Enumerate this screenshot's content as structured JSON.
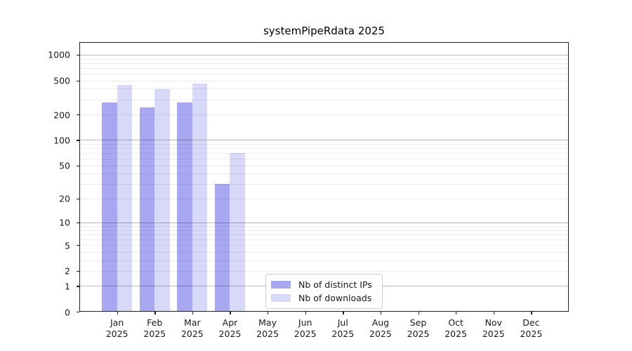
{
  "chart_data": {
    "type": "bar",
    "title": "systemPipeRdata 2025",
    "scale": "log1p",
    "grid": true,
    "legend_position": "bottom-center",
    "categories": [
      "Jan",
      "Feb",
      "Mar",
      "Apr",
      "May",
      "Jun",
      "Jul",
      "Aug",
      "Sep",
      "Oct",
      "Nov",
      "Dec"
    ],
    "year_label": "2025",
    "series": [
      {
        "name": "Nb of distinct IPs",
        "color": "#a8a8f2",
        "values": [
          275,
          243,
          275,
          30,
          0,
          0,
          0,
          0,
          0,
          0,
          0,
          0
        ]
      },
      {
        "name": "Nb of downloads",
        "color": "#d8d8f8",
        "values": [
          440,
          395,
          460,
          70,
          0,
          0,
          0,
          0,
          0,
          0,
          0,
          0
        ]
      }
    ],
    "yticks": [
      0,
      1,
      2,
      5,
      10,
      20,
      50,
      100,
      200,
      500,
      1000
    ],
    "ylim": [
      0,
      1400
    ],
    "xlabel": "",
    "ylabel": ""
  }
}
